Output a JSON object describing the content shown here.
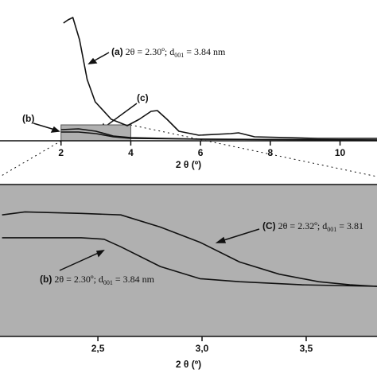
{
  "chart_data": [
    {
      "type": "line",
      "xlabel": "2 θ (º)",
      "xlim": [
        0.25,
        11.06
      ],
      "ylim": [
        0,
        162
      ],
      "xticks": [
        2,
        4,
        6,
        8,
        10
      ],
      "highlight": [
        2,
        4
      ],
      "series": [
        {
          "name": "(a)",
          "color": "#111",
          "x": [
            2.07,
            2.2,
            2.34,
            2.53,
            2.75,
            2.98,
            3.44,
            3.9,
            4.24,
            4.58,
            4.76,
            5.04,
            5.38,
            5.95,
            6.86,
            7.09,
            7.55,
            9.37,
            11.06
          ],
          "values": [
            148,
            152,
            155,
            127,
            77,
            49,
            27,
            19,
            27,
            37,
            38,
            27,
            12,
            7,
            9,
            10,
            5,
            3,
            3
          ]
        },
        {
          "name": "(b)",
          "color": "#111",
          "x": [
            2.0,
            2.5,
            3.0,
            3.5,
            4.0,
            6.0,
            11.06
          ],
          "values": [
            14,
            15,
            12,
            6,
            4,
            2,
            1
          ]
        },
        {
          "name": "(c)",
          "color": "#111",
          "x": [
            2.0,
            2.5,
            3.0,
            3.5,
            4.0,
            6.0,
            11.06
          ],
          "values": [
            11,
            11,
            9,
            5,
            3,
            2,
            1
          ]
        }
      ],
      "annotations": [
        {
          "label": "(a)",
          "text": " 2θ = 2.30º; d",
          "sub": "001",
          "tail": " = 3.84 nm"
        }
      ]
    },
    {
      "type": "line",
      "xlabel": "2 θ (º)",
      "xlim": [
        2.03,
        3.84
      ],
      "ylim": [
        0,
        100
      ],
      "xticks": [
        {
          "value": 2.5,
          "label": "2,5"
        },
        {
          "value": 3.0,
          "label": "3,0"
        },
        {
          "value": 3.5,
          "label": "3,5"
        }
      ],
      "series": [
        {
          "name": "(C)",
          "color": "#111",
          "x": [
            2.04,
            2.15,
            2.42,
            2.61,
            2.8,
            2.99,
            3.18,
            3.37,
            3.56,
            3.71,
            3.84
          ],
          "values": [
            80,
            82,
            81,
            80,
            72,
            62,
            49,
            41,
            36,
            34,
            33
          ]
        },
        {
          "name": "(b)",
          "color": "#111",
          "x": [
            2.04,
            2.42,
            2.53,
            2.61,
            2.8,
            2.99,
            3.18,
            3.48,
            3.84
          ],
          "values": [
            65,
            65,
            64,
            59,
            46,
            38,
            36,
            34,
            33
          ]
        }
      ],
      "annotations": [
        {
          "label": "(C)",
          "text": " 2θ = 2.32º; d",
          "sub": "001",
          "tail": " = 3.81"
        },
        {
          "label": "(b)",
          "text": " 2θ = 2.30º; d",
          "sub": "001",
          "tail": " = 3.84 nm"
        }
      ]
    }
  ]
}
